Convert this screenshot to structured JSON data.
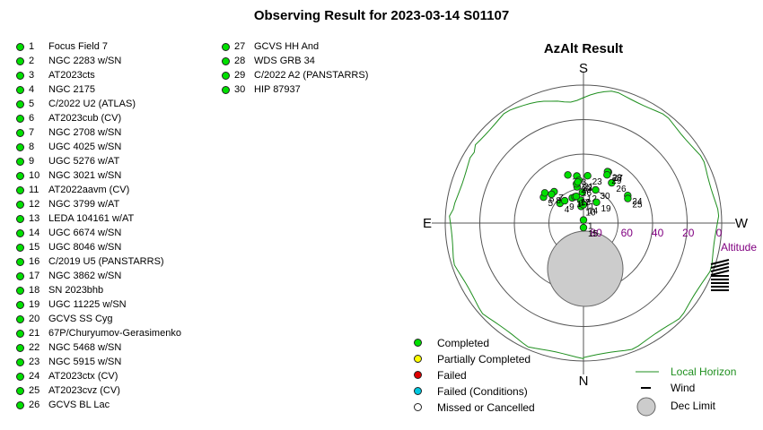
{
  "title": "Observing Result for 2023-03-14 S01107",
  "targets_col1": [
    {
      "num": "1",
      "name": "Focus Field 7",
      "status": "completed"
    },
    {
      "num": "2",
      "name": "NGC 2283 w/SN",
      "status": "completed"
    },
    {
      "num": "3",
      "name": "AT2023cts",
      "status": "completed"
    },
    {
      "num": "4",
      "name": "NGC 2175",
      "status": "completed"
    },
    {
      "num": "5",
      "name": "C/2022 U2 (ATLAS)",
      "status": "completed"
    },
    {
      "num": "6",
      "name": "AT2023cub (CV)",
      "status": "completed"
    },
    {
      "num": "7",
      "name": "NGC 2708 w/SN",
      "status": "completed"
    },
    {
      "num": "8",
      "name": "UGC 4025 w/SN",
      "status": "completed"
    },
    {
      "num": "9",
      "name": "UGC 5276 w/AT",
      "status": "completed"
    },
    {
      "num": "10",
      "name": "NGC 3021 w/SN",
      "status": "completed"
    },
    {
      "num": "11",
      "name": "AT2022aavm (CV)",
      "status": "completed"
    },
    {
      "num": "12",
      "name": "NGC 3799 w/AT",
      "status": "completed"
    },
    {
      "num": "13",
      "name": "LEDA 104161 w/AT",
      "status": "completed"
    },
    {
      "num": "14",
      "name": "UGC 6674 w/SN",
      "status": "completed"
    },
    {
      "num": "15",
      "name": "UGC 8046 w/SN",
      "status": "completed"
    },
    {
      "num": "16",
      "name": "C/2019 U5 (PANSTARRS)",
      "status": "completed"
    },
    {
      "num": "17",
      "name": "NGC 3862 w/SN",
      "status": "completed"
    },
    {
      "num": "18",
      "name": "SN 2023bhb",
      "status": "completed"
    },
    {
      "num": "19",
      "name": "UGC 11225 w/SN",
      "status": "completed"
    },
    {
      "num": "20",
      "name": "GCVS SS Cyg",
      "status": "completed"
    },
    {
      "num": "21",
      "name": "67P/Churyumov-Gerasimenko",
      "status": "completed"
    },
    {
      "num": "22",
      "name": "NGC 5468 w/SN",
      "status": "completed"
    },
    {
      "num": "23",
      "name": "NGC 5915 w/SN",
      "status": "completed"
    },
    {
      "num": "24",
      "name": "AT2023ctx (CV)",
      "status": "completed"
    },
    {
      "num": "25",
      "name": "AT2023cvz (CV)",
      "status": "completed"
    },
    {
      "num": "26",
      "name": "GCVS BL Lac",
      "status": "completed"
    }
  ],
  "targets_col2": [
    {
      "num": "27",
      "name": "GCVS HH And",
      "status": "completed"
    },
    {
      "num": "28",
      "name": "WDS GRB 34",
      "status": "completed"
    },
    {
      "num": "29",
      "name": "C/2022 A2 (PANSTARRS)",
      "status": "completed"
    },
    {
      "num": "30",
      "name": "HIP 87937",
      "status": "completed"
    }
  ],
  "azalt": {
    "title": "AzAlt Result",
    "directions": {
      "top": "S",
      "bottom": "N",
      "left": "E",
      "right": "W"
    },
    "altitude_label": "Altitude",
    "altitude_ticks": [
      "80",
      "60",
      "40",
      "20",
      "0"
    ],
    "points": [
      {
        "label": "1",
        "az": 180,
        "alt": 88
      },
      {
        "label": "2",
        "az": 162,
        "alt": 57
      },
      {
        "label": "3",
        "az": 172,
        "alt": 59
      },
      {
        "label": "4",
        "az": 130,
        "alt": 70
      },
      {
        "label": "5",
        "az": 123,
        "alt": 59
      },
      {
        "label": "6",
        "az": 128,
        "alt": 58
      },
      {
        "label": "7",
        "az": 137,
        "alt": 62
      },
      {
        "label": "8",
        "az": 132,
        "alt": 62
      },
      {
        "label": "9",
        "az": 140,
        "alt": 71
      },
      {
        "label": "10",
        "az": 172,
        "alt": 79
      },
      {
        "label": "11",
        "az": 173,
        "alt": 75
      },
      {
        "label": "12",
        "az": 178,
        "alt": 70
      },
      {
        "label": "13",
        "az": 156,
        "alt": 72
      },
      {
        "label": "14",
        "az": 180,
        "alt": 78
      },
      {
        "label": "15",
        "az": 180,
        "alt": 93
      },
      {
        "label": "16",
        "az": 170,
        "alt": 66
      },
      {
        "label": "17",
        "az": 162,
        "alt": 72
      },
      {
        "label": "18",
        "az": 165,
        "alt": 72
      },
      {
        "label": "19",
        "az": 212,
        "alt": 74
      },
      {
        "label": "20",
        "az": 170,
        "alt": 64
      },
      {
        "label": "21",
        "az": 174,
        "alt": 62
      },
      {
        "label": "22",
        "az": 172,
        "alt": 63
      },
      {
        "label": "23",
        "az": 185,
        "alt": 59
      },
      {
        "label": "24",
        "az": 238,
        "alt": 56
      },
      {
        "label": "25",
        "az": 241,
        "alt": 57
      },
      {
        "label": "26",
        "az": 215,
        "alt": 58
      },
      {
        "label": "27",
        "az": 206,
        "alt": 53
      },
      {
        "label": "28",
        "az": 205,
        "alt": 53
      },
      {
        "label": "29",
        "az": 206,
        "alt": 55
      },
      {
        "label": "30",
        "az": 200,
        "alt": 67
      }
    ]
  },
  "legend": {
    "completed": "Completed",
    "partial": "Partially Completed",
    "failed": "Failed",
    "failed_conditions": "Failed (Conditions)",
    "missed": "Missed or Cancelled",
    "local_horizon": "Local Horizon",
    "wind": "Wind",
    "dec_limit": "Dec Limit"
  },
  "colors": {
    "completed": "#00e000",
    "partial": "#ffff00",
    "failed": "#e00000",
    "failed_conditions": "#00c8e0",
    "missed": "#ffffff",
    "horizon": "#1f8f1f",
    "altitude_text": "#800080",
    "dec_limit_fill": "#cccccc"
  }
}
